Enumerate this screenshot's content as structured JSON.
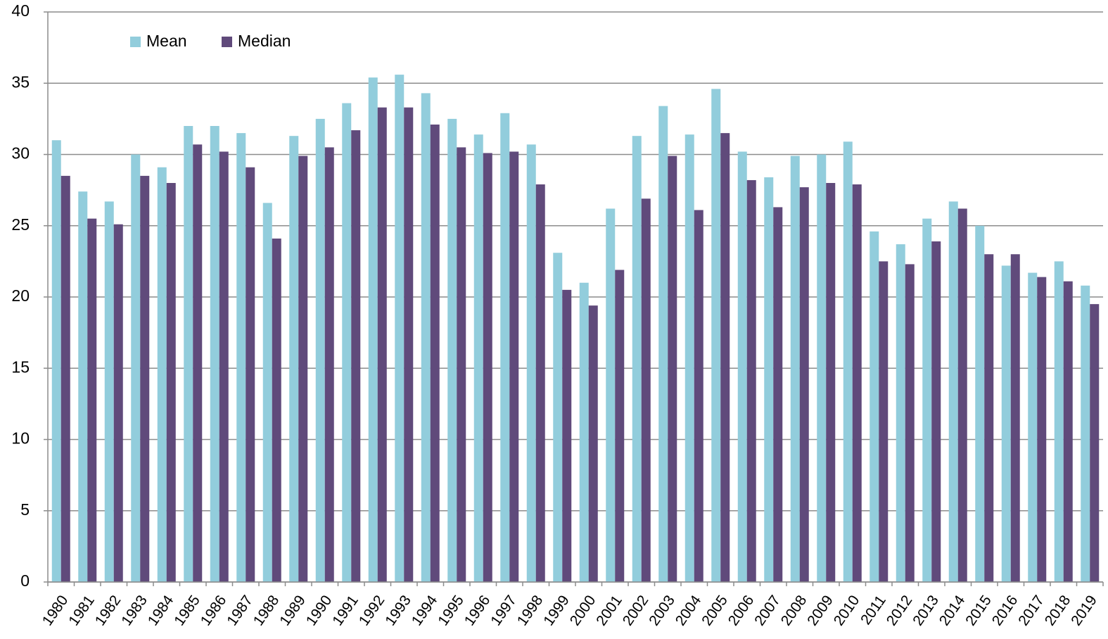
{
  "chart_data": {
    "type": "bar",
    "categories": [
      "1980",
      "1981",
      "1982",
      "1983",
      "1984",
      "1985",
      "1986",
      "1987",
      "1988",
      "1989",
      "1990",
      "1991",
      "1992",
      "1993",
      "1994",
      "1995",
      "1996",
      "1997",
      "1998",
      "1999",
      "2000",
      "2001",
      "2002",
      "2003",
      "2004",
      "2005",
      "2006",
      "2007",
      "2008",
      "2009",
      "2010",
      "2011",
      "2012",
      "2013",
      "2014",
      "2015",
      "2016",
      "2017",
      "2018",
      "2019"
    ],
    "series": [
      {
        "name": "Mean",
        "color": "#92cddc",
        "values": [
          31.0,
          27.4,
          26.7,
          30.0,
          29.1,
          32.0,
          32.0,
          31.5,
          26.6,
          31.3,
          32.5,
          33.6,
          35.4,
          35.6,
          34.3,
          32.5,
          31.4,
          32.9,
          30.7,
          23.1,
          21.0,
          26.2,
          31.3,
          33.4,
          31.4,
          34.6,
          30.2,
          28.4,
          29.9,
          30.0,
          30.9,
          24.6,
          23.7,
          25.5,
          26.7,
          25.0,
          22.2,
          21.7,
          22.5,
          20.8
        ]
      },
      {
        "name": "Median",
        "color": "#604a7b",
        "values": [
          28.5,
          25.5,
          25.1,
          28.5,
          28.0,
          30.7,
          30.2,
          29.1,
          24.1,
          29.9,
          30.5,
          31.7,
          33.3,
          33.3,
          32.1,
          30.5,
          30.1,
          30.2,
          27.9,
          20.5,
          19.4,
          21.9,
          26.9,
          29.9,
          26.1,
          31.5,
          28.2,
          26.3,
          27.7,
          28.0,
          27.9,
          22.5,
          22.3,
          23.9,
          26.2,
          23.0,
          23.0,
          21.4,
          21.1,
          19.5
        ]
      }
    ],
    "ylim": [
      0,
      40
    ],
    "yticks": [
      0,
      5,
      10,
      15,
      20,
      25,
      30,
      35,
      40
    ],
    "grid": true,
    "legend": "top-left"
  }
}
